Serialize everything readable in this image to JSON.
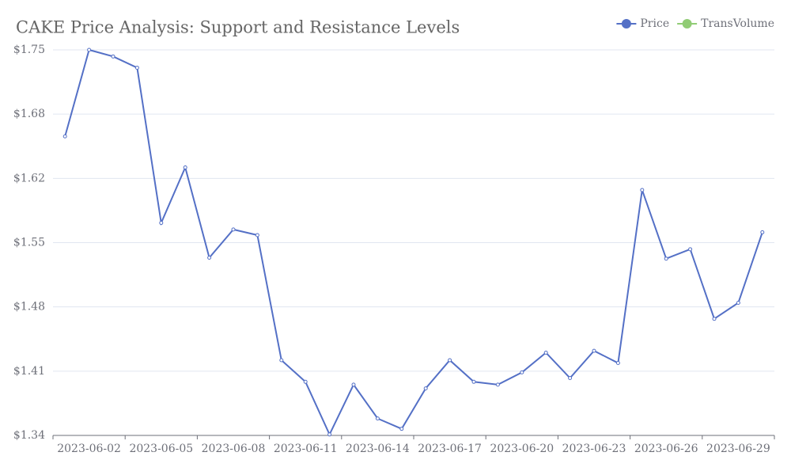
{
  "chart_data": {
    "type": "line",
    "title": "CAKE Price Analysis: Support and Resistance Levels",
    "categories": [
      null,
      "2023-06-02",
      null,
      null,
      "2023-06-05",
      null,
      null,
      "2023-06-08",
      null,
      null,
      "2023-06-11",
      null,
      null,
      "2023-06-14",
      null,
      null,
      "2023-06-17",
      null,
      null,
      "2023-06-20",
      null,
      null,
      "2023-06-23",
      null,
      null,
      "2023-06-26",
      null,
      null,
      "2023-06-29",
      null
    ],
    "series": [
      {
        "name": "Price",
        "color": "#5470c6",
        "values": [
          1.658,
          1.75,
          1.743,
          1.731,
          1.566,
          1.625,
          1.529,
          1.559,
          1.553,
          1.42,
          1.397,
          1.341,
          1.394,
          1.358,
          1.347,
          1.39,
          1.42,
          1.397,
          1.394,
          1.407,
          1.428,
          1.401,
          1.43,
          1.417,
          1.601,
          1.528,
          1.538,
          1.464,
          1.481,
          1.556
        ]
      },
      {
        "name": "TransVolume",
        "color": "#91cc75",
        "values": [
          null,
          null,
          null,
          null,
          null,
          null,
          null,
          null,
          null,
          null,
          null,
          null,
          null,
          null,
          null,
          null,
          null,
          null,
          null,
          null,
          null,
          null,
          null,
          null,
          null,
          null,
          null,
          null,
          null,
          null
        ]
      }
    ],
    "ylim": [
      1.34,
      1.75
    ],
    "yticks": [
      {
        "value": 1.34,
        "label": "$1.34"
      },
      {
        "value": 1.4083,
        "label": "$1.41"
      },
      {
        "value": 1.4767,
        "label": "$1.48"
      },
      {
        "value": 1.545,
        "label": "$1.55"
      },
      {
        "value": 1.6133,
        "label": "$1.62"
      },
      {
        "value": 1.6817,
        "label": "$1.68"
      },
      {
        "value": 1.75,
        "label": "$1.75"
      }
    ],
    "grid": true,
    "legend": "top-right"
  }
}
